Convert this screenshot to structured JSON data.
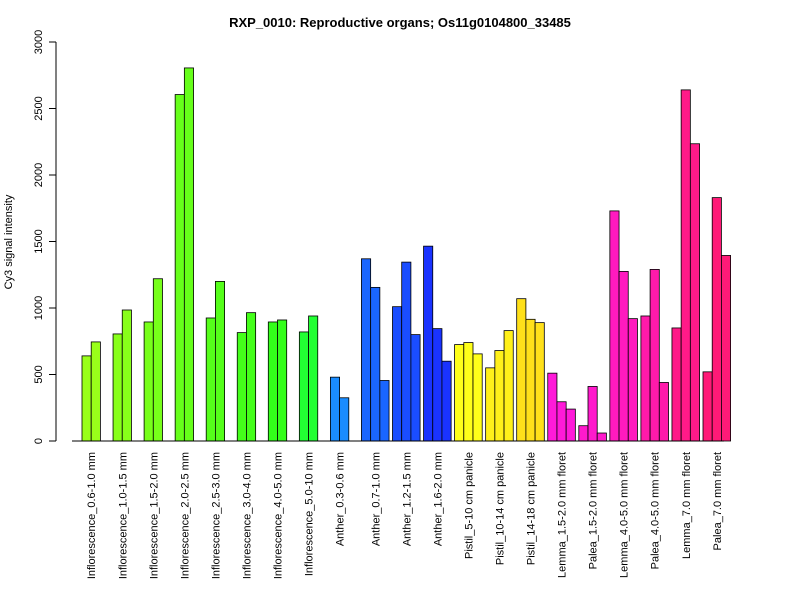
{
  "chart_data": {
    "type": "bar",
    "title": "RXP_0010: Reproductive organs; Os11g0104800_33485",
    "xlabel": "",
    "ylabel": "Cy3 signal intensity",
    "ylim": [
      0,
      3000
    ],
    "yticks": [
      "0",
      "500",
      "1000",
      "1500",
      "2000",
      "2500",
      "3000"
    ],
    "grid": false,
    "groups": [
      {
        "label": "Inflorescence_0.6-1.0 mm",
        "color": "#99ff1a",
        "values": [
          640,
          745
        ]
      },
      {
        "label": "Inflorescence_1.0-1.5 mm",
        "color": "#88ff1a",
        "values": [
          805,
          985
        ]
      },
      {
        "label": "Inflorescence_1.5-2.0 mm",
        "color": "#77ff1a",
        "values": [
          895,
          1220
        ]
      },
      {
        "label": "Inflorescence_2.0-2.5 mm",
        "color": "#66ff1a",
        "values": [
          2605,
          2805
        ]
      },
      {
        "label": "Inflorescence_2.5-3.0 mm",
        "color": "#55ff1a",
        "values": [
          925,
          1200
        ]
      },
      {
        "label": "Inflorescence_3.0-4.0 mm",
        "color": "#44ff1a",
        "values": [
          815,
          965
        ]
      },
      {
        "label": "Inflorescence_4.0-5.0 mm",
        "color": "#33ff1a",
        "values": [
          895,
          910
        ]
      },
      {
        "label": "Inflorescence_5.0-10 mm",
        "color": "#22ff33",
        "values": [
          820,
          940
        ]
      },
      {
        "label": "Anther_0.3-0.6 mm",
        "color": "#1a8cff",
        "values": [
          480,
          325
        ]
      },
      {
        "label": "Anther_0.7-1.0 mm",
        "color": "#1a66ff",
        "values": [
          1370,
          1155,
          455
        ]
      },
      {
        "label": "Anther_1.2-1.5 mm",
        "color": "#1a4dff",
        "values": [
          1010,
          1345,
          800
        ]
      },
      {
        "label": "Anther_1.6-2.0 mm",
        "color": "#1a33ff",
        "values": [
          1465,
          845,
          600
        ]
      },
      {
        "label": "Pistil_5-10 cm panicle",
        "color": "#ffff1a",
        "values": [
          725,
          740,
          655
        ]
      },
      {
        "label": "Pistil_10-14 cm panicle",
        "color": "#fff01a",
        "values": [
          550,
          680,
          830
        ]
      },
      {
        "label": "Pistil_14-18 cm panicle",
        "color": "#ffe01a",
        "values": [
          1070,
          915,
          890
        ]
      },
      {
        "label": "Lemma_1.5-2.0 mm floret",
        "color": "#ff1ad9",
        "values": [
          510,
          295,
          240
        ]
      },
      {
        "label": "Palea_1.5-2.0 mm floret",
        "color": "#ff1acc",
        "values": [
          115,
          410,
          60
        ]
      },
      {
        "label": "Lemma_4.0-5.0 mm floret",
        "color": "#ff1abf",
        "values": [
          1730,
          1275,
          920
        ]
      },
      {
        "label": "Palea_4.0-5.0 mm floret",
        "color": "#ff1aaa",
        "values": [
          940,
          1290,
          440
        ]
      },
      {
        "label": "Lemma_7.0 mm floret",
        "color": "#ff1a88",
        "values": [
          850,
          2640,
          2235
        ]
      },
      {
        "label": "Palea_7.0 mm floret",
        "color": "#ff1a77",
        "values": [
          520,
          1830,
          1395
        ]
      }
    ]
  }
}
